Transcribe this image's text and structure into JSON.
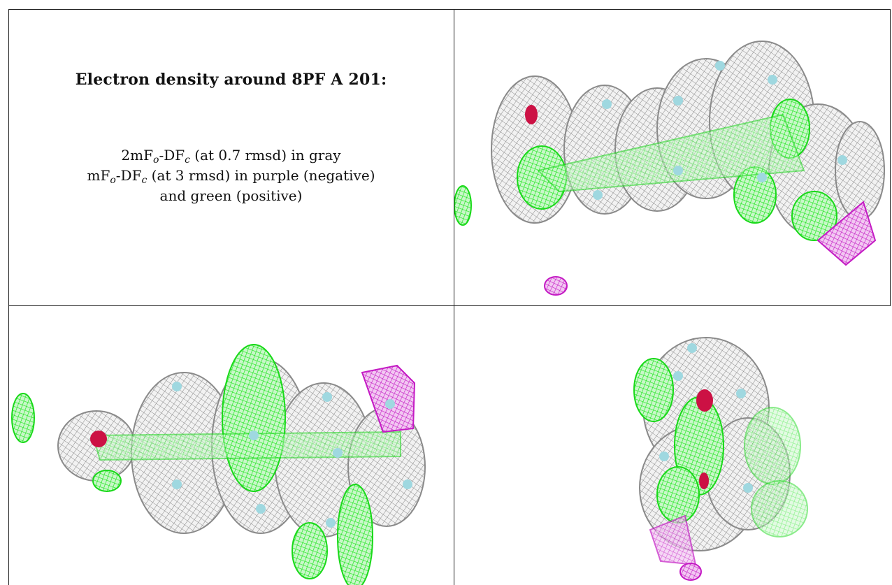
{
  "caption": {
    "title": "Electron density around 8PF A 201:",
    "line1": {
      "prefix": "2mF",
      "sub1": "o",
      "mid": "-DF",
      "sub2": "c",
      "suffix": " (at 0.7 rmsd) in gray"
    },
    "line2": {
      "prefix": "mF",
      "sub1": "o",
      "mid": "-DF",
      "sub2": "c",
      "suffix": " (at 3 rmsd) in purple (negative)"
    },
    "line3": "and green (positive)"
  },
  "colors": {
    "mesh_gray": "#9a9a9a",
    "positive_green": "#22ee22",
    "negative_purple": "#cc22cc",
    "oxygen_red": "#cc1144",
    "atom_cyan": "#9fd8e0"
  },
  "panels": [
    {
      "view": "top-right"
    },
    {
      "view": "bottom-left"
    },
    {
      "view": "bottom-right"
    }
  ]
}
